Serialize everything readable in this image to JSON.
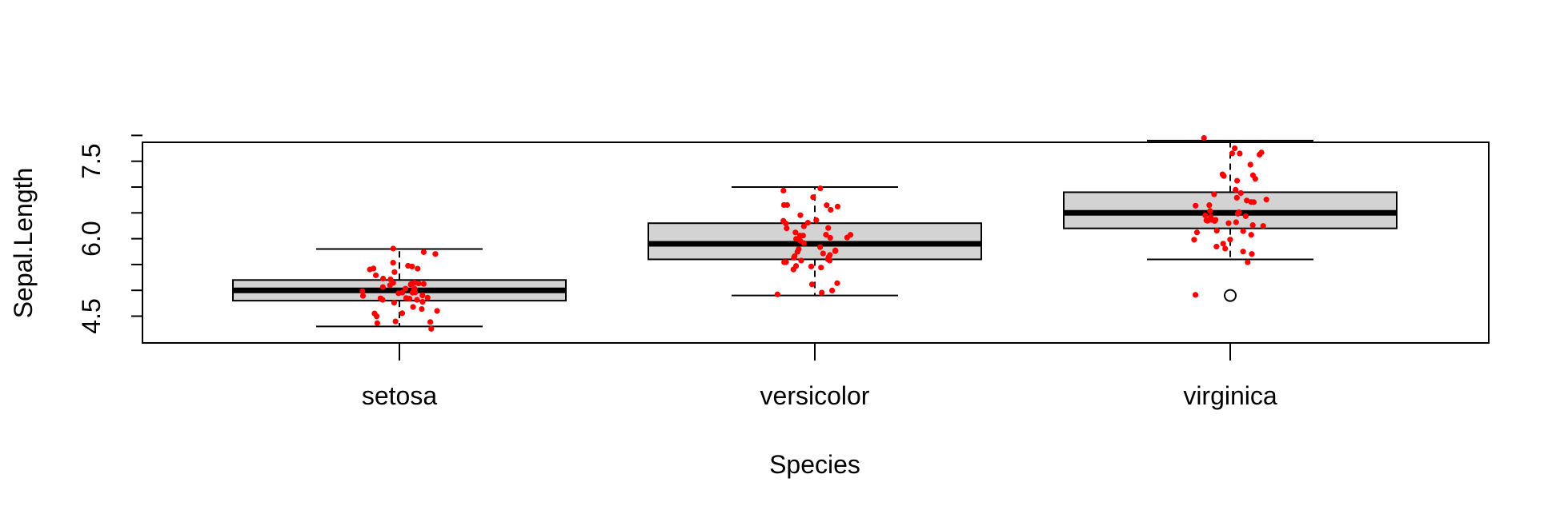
{
  "chart_data": {
    "type": "boxplot",
    "title": "",
    "xlabel": "Species",
    "ylabel": "Sepal.Length",
    "ylim": [
      4.2,
      8.1
    ],
    "y_ticks": [
      "4.5",
      "6.0",
      "7.5"
    ],
    "categories": [
      "setosa",
      "versicolor",
      "virginica"
    ],
    "box_fill": "#d3d3d3",
    "point_color": "#ff0000",
    "boxes": [
      {
        "name": "setosa",
        "min": 4.3,
        "q1": 4.8,
        "median": 5.0,
        "q3": 5.2,
        "max": 5.8,
        "outliers": []
      },
      {
        "name": "versicolor",
        "min": 4.9,
        "q1": 5.6,
        "median": 5.9,
        "q3": 6.3,
        "max": 7.0,
        "outliers": []
      },
      {
        "name": "virginica",
        "min": 5.6,
        "q1": 6.2,
        "median": 6.5,
        "q3": 6.9,
        "max": 7.9,
        "outliers": [
          4.9
        ]
      }
    ],
    "points": [
      {
        "group": "setosa",
        "values": [
          5.1,
          4.9,
          4.7,
          4.6,
          5.0,
          5.4,
          4.6,
          5.0,
          4.4,
          4.9,
          5.4,
          4.8,
          4.8,
          4.3,
          5.8,
          5.7,
          5.4,
          5.1,
          5.7,
          5.1,
          5.4,
          5.1,
          4.6,
          5.1,
          4.8,
          5.0,
          5.0,
          5.2,
          5.2,
          4.7,
          4.8,
          5.4,
          5.2,
          5.5,
          4.9,
          5.0,
          5.5,
          4.9,
          4.4,
          5.1,
          5.0,
          4.5,
          4.4,
          5.0,
          5.1,
          4.8,
          5.1,
          4.6,
          5.3,
          5.0
        ]
      },
      {
        "group": "versicolor",
        "values": [
          7.0,
          6.4,
          6.9,
          5.5,
          6.5,
          5.7,
          6.3,
          4.9,
          6.6,
          5.2,
          5.0,
          5.9,
          6.0,
          6.1,
          5.6,
          6.7,
          5.6,
          5.8,
          6.2,
          5.6,
          5.9,
          6.1,
          6.3,
          6.1,
          6.4,
          6.6,
          6.8,
          6.7,
          6.0,
          5.7,
          5.5,
          5.5,
          5.8,
          6.0,
          5.4,
          6.0,
          6.7,
          6.3,
          5.6,
          5.5,
          5.5,
          6.1,
          5.8,
          5.0,
          5.6,
          5.7,
          5.7,
          6.2,
          5.1,
          5.7
        ]
      },
      {
        "group": "virginica",
        "values": [
          6.3,
          5.8,
          7.1,
          6.3,
          6.5,
          7.6,
          4.9,
          7.3,
          6.7,
          7.2,
          6.5,
          6.4,
          6.8,
          5.7,
          5.8,
          6.4,
          6.5,
          7.7,
          7.7,
          6.0,
          6.9,
          5.6,
          7.7,
          6.3,
          6.7,
          7.2,
          6.2,
          6.1,
          6.4,
          7.2,
          7.4,
          7.9,
          6.4,
          6.3,
          6.1,
          7.7,
          6.3,
          6.4,
          6.0,
          6.9,
          6.7,
          6.9,
          5.8,
          6.8,
          6.7,
          6.7,
          6.3,
          6.5,
          6.2,
          5.9
        ]
      }
    ]
  }
}
